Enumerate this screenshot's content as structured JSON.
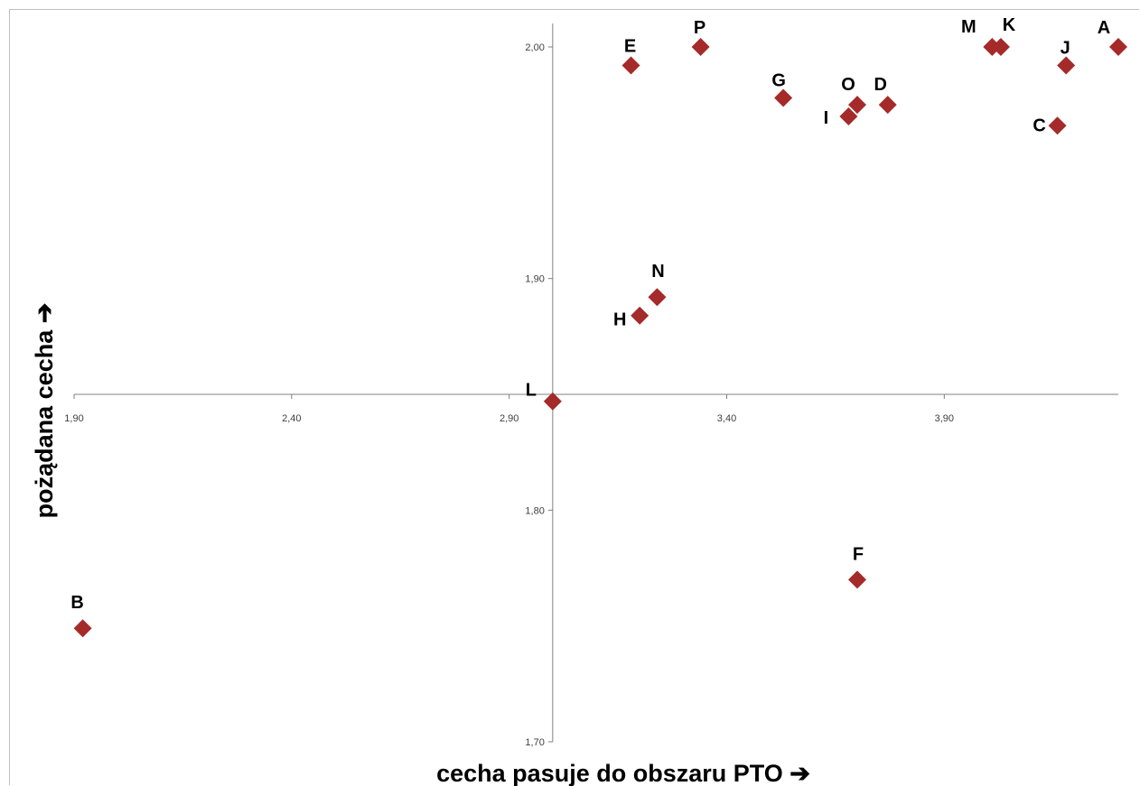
{
  "chart_data": {
    "type": "scatter",
    "xlabel": "cecha pasuje do obszaru PTO ➔",
    "ylabel": "pożądana cecha ➔",
    "xlim": [
      1.9,
      4.3
    ],
    "ylim": [
      1.7,
      2.01
    ],
    "x_ticks": [
      "1,90",
      "2,40",
      "2,90",
      "3,40",
      "3,90"
    ],
    "y_ticks": [
      "2,00",
      "1,90",
      "1,80",
      "1,70"
    ],
    "x_tick_values": [
      1.9,
      2.4,
      2.9,
      3.4,
      3.9
    ],
    "y_tick_values": [
      2.0,
      1.9,
      1.8,
      1.7
    ],
    "axes_cross": {
      "x": 3.0,
      "y": 1.85
    },
    "marker_color": "#A52A2A",
    "grid": false,
    "points": [
      {
        "label": "A",
        "x": 4.3,
        "y": 2.0
      },
      {
        "label": "B",
        "x": 1.92,
        "y": 1.749
      },
      {
        "label": "C",
        "x": 4.16,
        "y": 1.966
      },
      {
        "label": "D",
        "x": 3.77,
        "y": 1.975
      },
      {
        "label": "E",
        "x": 3.18,
        "y": 1.992
      },
      {
        "label": "F",
        "x": 3.7,
        "y": 1.77
      },
      {
        "label": "G",
        "x": 3.53,
        "y": 1.978
      },
      {
        "label": "H",
        "x": 3.2,
        "y": 1.884
      },
      {
        "label": "I",
        "x": 3.68,
        "y": 1.97
      },
      {
        "label": "J",
        "x": 4.18,
        "y": 1.992
      },
      {
        "label": "K",
        "x": 4.03,
        "y": 2.0
      },
      {
        "label": "L",
        "x": 3.0,
        "y": 1.847
      },
      {
        "label": "M",
        "x": 4.01,
        "y": 2.0
      },
      {
        "label": "N",
        "x": 3.24,
        "y": 1.892
      },
      {
        "label": "O",
        "x": 3.7,
        "y": 1.975
      },
      {
        "label": "P",
        "x": 3.34,
        "y": 2.0
      }
    ]
  }
}
